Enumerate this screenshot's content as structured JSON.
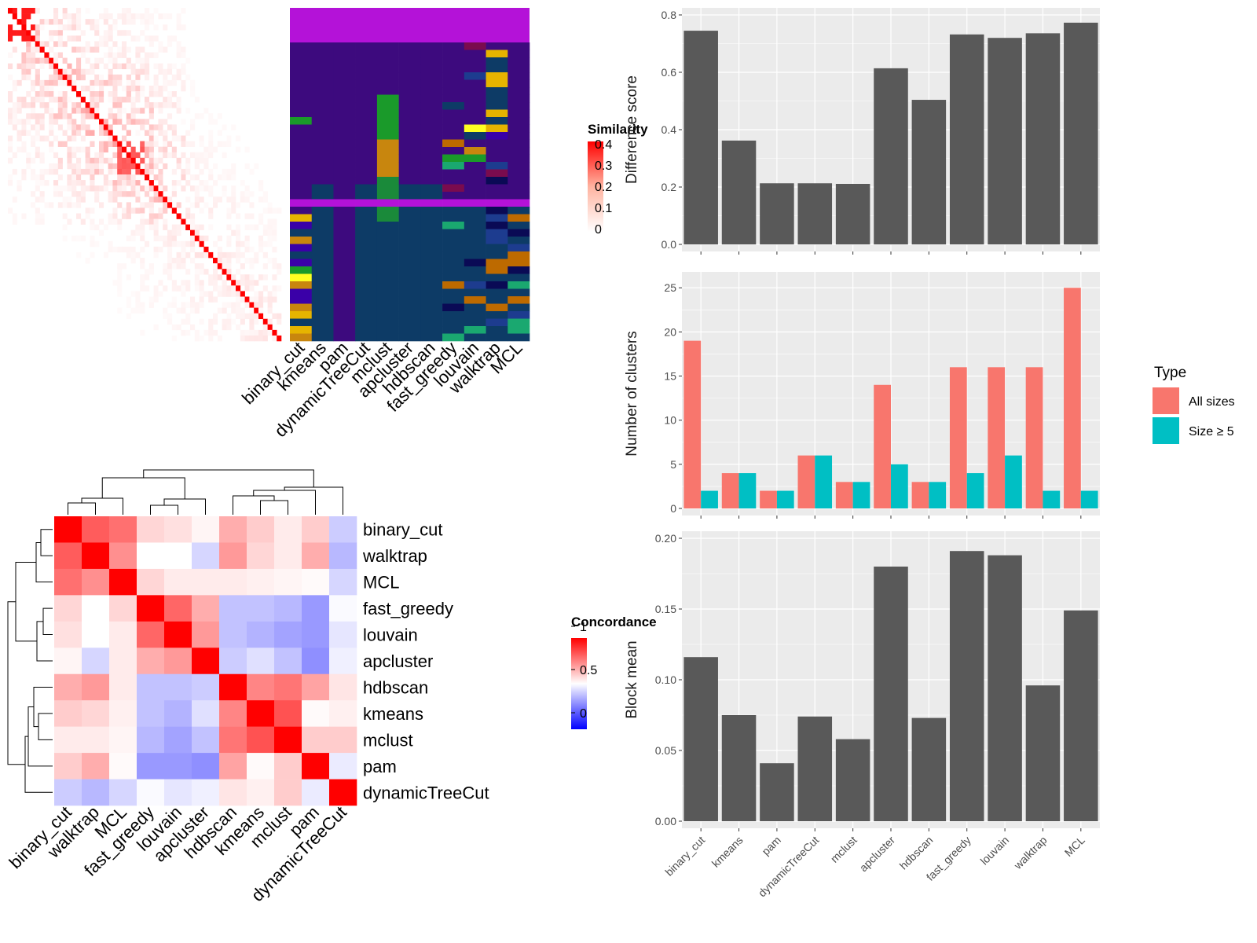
{
  "chart_data": [
    {
      "type": "heatmap",
      "name": "Similarity matrix heatmap",
      "legend_title": "Similarity",
      "legend_ticks": [
        "0.4",
        "0.3",
        "0.2",
        "0.1",
        "0"
      ],
      "range": [
        0,
        0.4
      ],
      "colors": {
        "low": "#ffffff",
        "high": "#ff0000"
      }
    },
    {
      "type": "heatmap",
      "name": "Cluster assignment heatmap",
      "columns": [
        "binary_cut",
        "kmeans",
        "pam",
        "dynamicTreeCut",
        "mclust",
        "apcluster",
        "hdbscan",
        "fast_greedy",
        "louvain",
        "walktrap",
        "MCL"
      ]
    },
    {
      "type": "heatmap",
      "name": "Concordance heatmap",
      "legend_title": "Concordance",
      "legend_ticks": [
        "1",
        "0.5",
        "0"
      ],
      "range": [
        0,
        1
      ],
      "colors": {
        "low": "#0000ff",
        "mid": "#ffffff",
        "high": "#ff0000"
      },
      "row_labels": [
        "binary_cut",
        "walktrap",
        "MCL",
        "fast_greedy",
        "louvain",
        "apcluster",
        "hdbscan",
        "kmeans",
        "mclust",
        "pam",
        "dynamicTreeCut"
      ],
      "col_labels": [
        "binary_cut",
        "walktrap",
        "MCL",
        "fast_greedy",
        "louvain",
        "apcluster",
        "hdbscan",
        "kmeans",
        "mclust",
        "pam",
        "dynamicTreeCut"
      ],
      "values": [
        [
          1.0,
          0.82,
          0.78,
          0.58,
          0.56,
          0.52,
          0.66,
          0.6,
          0.54,
          0.6,
          0.4
        ],
        [
          0.82,
          1.0,
          0.72,
          0.5,
          0.5,
          0.42,
          0.7,
          0.58,
          0.54,
          0.66,
          0.36
        ],
        [
          0.78,
          0.72,
          1.0,
          0.58,
          0.54,
          0.54,
          0.54,
          0.53,
          0.52,
          0.51,
          0.42
        ],
        [
          0.58,
          0.5,
          0.58,
          1.0,
          0.8,
          0.66,
          0.38,
          0.38,
          0.36,
          0.3,
          0.49
        ],
        [
          0.56,
          0.5,
          0.54,
          0.8,
          1.0,
          0.7,
          0.38,
          0.35,
          0.32,
          0.3,
          0.45
        ],
        [
          0.52,
          0.42,
          0.54,
          0.66,
          0.7,
          1.0,
          0.4,
          0.44,
          0.38,
          0.28,
          0.47
        ],
        [
          0.66,
          0.7,
          0.54,
          0.38,
          0.38,
          0.4,
          1.0,
          0.74,
          0.77,
          0.68,
          0.55
        ],
        [
          0.6,
          0.58,
          0.53,
          0.38,
          0.35,
          0.44,
          0.74,
          1.0,
          0.84,
          0.51,
          0.53
        ],
        [
          0.54,
          0.54,
          0.52,
          0.36,
          0.32,
          0.38,
          0.77,
          0.84,
          1.0,
          0.6,
          0.6
        ],
        [
          0.6,
          0.66,
          0.51,
          0.3,
          0.3,
          0.28,
          0.68,
          0.51,
          0.6,
          1.0,
          0.46
        ],
        [
          0.4,
          0.36,
          0.42,
          0.49,
          0.45,
          0.47,
          0.55,
          0.53,
          0.6,
          0.46,
          1.0
        ]
      ]
    },
    {
      "type": "bar",
      "categories": [
        "binary_cut",
        "kmeans",
        "pam",
        "dynamicTreeCut",
        "mclust",
        "apcluster",
        "hdbscan",
        "fast_greedy",
        "louvain",
        "walktrap",
        "MCL"
      ],
      "values": [
        0.745,
        0.362,
        0.213,
        0.213,
        0.211,
        0.614,
        0.504,
        0.732,
        0.72,
        0.736,
        0.773
      ],
      "ylabel": "Difference score",
      "ylim": [
        0,
        0.8
      ],
      "yticks": [
        "0.0",
        "0.2",
        "0.4",
        "0.6",
        "0.8"
      ],
      "color": "#595959"
    },
    {
      "type": "bar",
      "categories": [
        "binary_cut",
        "kmeans",
        "pam",
        "dynamicTreeCut",
        "mclust",
        "apcluster",
        "hdbscan",
        "fast_greedy",
        "louvain",
        "walktrap",
        "MCL"
      ],
      "series": [
        {
          "name": "All sizes",
          "values": [
            19,
            4,
            2,
            6,
            3,
            14,
            3,
            16,
            16,
            16,
            25
          ],
          "color": "#f8766d"
        },
        {
          "name": "Size ≥ 5",
          "values": [
            2,
            4,
            2,
            6,
            3,
            5,
            3,
            4,
            6,
            2,
            2
          ],
          "color": "#00bfc4"
        }
      ],
      "ylabel": "Number of clusters",
      "ylim": [
        0,
        26
      ],
      "yticks": [
        "0",
        "5",
        "10",
        "15",
        "20",
        "25"
      ],
      "legend_title": "Type",
      "legend_position": "right"
    },
    {
      "type": "bar",
      "categories": [
        "binary_cut",
        "kmeans",
        "pam",
        "dynamicTreeCut",
        "mclust",
        "apcluster",
        "hdbscan",
        "fast_greedy",
        "louvain",
        "walktrap",
        "MCL"
      ],
      "values": [
        0.116,
        0.075,
        0.041,
        0.074,
        0.058,
        0.18,
        0.073,
        0.191,
        0.188,
        0.096,
        0.149
      ],
      "ylabel": "Block mean",
      "ylim": [
        0,
        0.2
      ],
      "yticks": [
        "0.00",
        "0.05",
        "0.10",
        "0.15",
        "0.20"
      ],
      "color": "#595959"
    }
  ]
}
